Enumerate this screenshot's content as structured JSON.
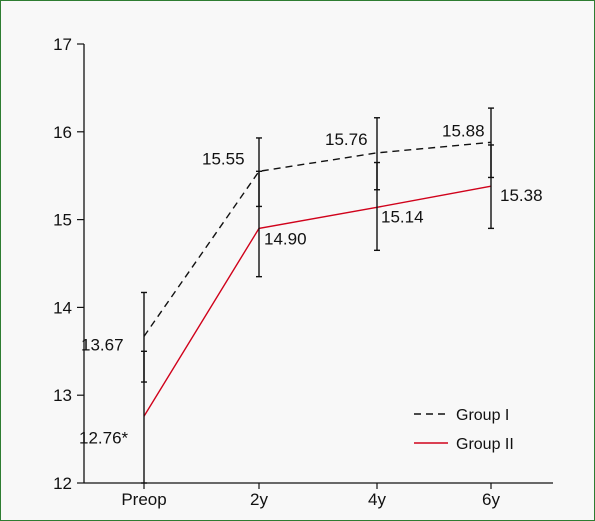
{
  "chart_data": {
    "type": "line",
    "title": "",
    "xlabel": "",
    "ylabel": "",
    "categories": [
      "Preop",
      "2y",
      "4y",
      "6y"
    ],
    "ylim": [
      12,
      17
    ],
    "yticks": [
      "12",
      "13",
      "14",
      "15",
      "16",
      "17"
    ],
    "grid": false,
    "legend_position": "bottom-right",
    "series": [
      {
        "name": "Group I",
        "style": "dashed",
        "color": "#111111",
        "values": [
          13.67,
          15.55,
          15.76,
          15.88
        ],
        "labels": [
          "13.67",
          "15.55",
          "15.76",
          "15.88"
        ],
        "error": [
          {
            "low": 13.15,
            "high": 14.17
          },
          {
            "low": 15.15,
            "high": 15.93
          },
          {
            "low": 15.34,
            "high": 16.16
          },
          {
            "low": 15.48,
            "high": 16.27
          }
        ]
      },
      {
        "name": "Group II",
        "style": "solid",
        "color": "#d0021b",
        "values": [
          12.76,
          14.9,
          15.14,
          15.38
        ],
        "labels": [
          "12.76*",
          "14.90",
          "15.14",
          "15.38"
        ],
        "error": [
          {
            "low": 12.0,
            "high": 13.5
          },
          {
            "low": 14.35,
            "high": 15.55
          },
          {
            "low": 14.65,
            "high": 15.65
          },
          {
            "low": 14.9,
            "high": 15.85
          }
        ]
      }
    ]
  }
}
